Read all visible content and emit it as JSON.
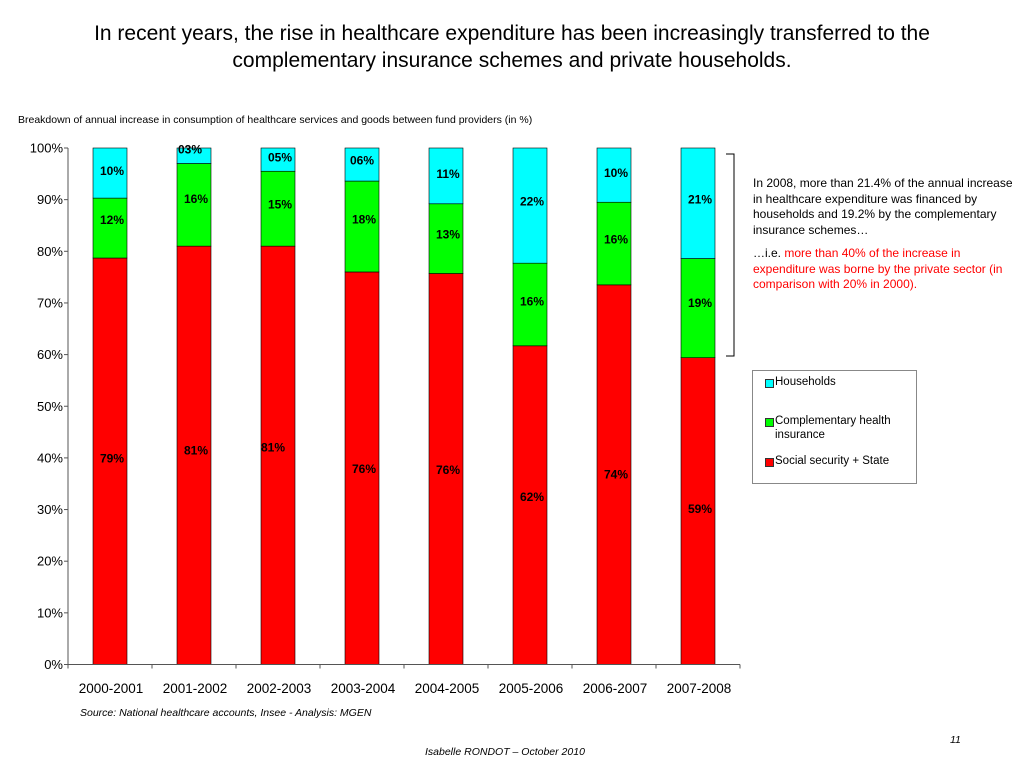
{
  "slide": {
    "title": "In recent years, the rise in healthcare expenditure has been increasingly transferred to the complementary insurance schemes and private households.",
    "subtitle": "Breakdown of annual increase in consumption of healthcare services and goods between fund providers (in %)",
    "source": "Source: National healthcare accounts, Insee   -   Analysis:  MGEN",
    "page_number": "11",
    "author": "Isabelle RONDOT – October 2010"
  },
  "annotation": {
    "paragraph1": "In 2008, more than 21.4% of the annual increase in healthcare expenditure was financed by households and 19.2% by the complementary insurance schemes…",
    "prefix": "…i.e. ",
    "highlight": "more than 40% of the increase in expenditure was borne by the private sector (in comparison with 20% in 2000).",
    "highlight_color": "#ff0000"
  },
  "legend": {
    "items": [
      {
        "label": "Households",
        "color": "#00ffff"
      },
      {
        "label": "Complementary health insurance",
        "color": "#00ff00"
      },
      {
        "label": "Social security + State",
        "color": "#ff0000"
      }
    ]
  },
  "chart_data": {
    "type": "bar",
    "stacked": true,
    "categories": [
      "2000-2001",
      "2001-2002",
      "2002-2003",
      "2003-2004",
      "2004-2005",
      "2005-2006",
      "2006-2007",
      "2007-2008"
    ],
    "ylim": [
      0,
      100
    ],
    "yticks": [
      "0%",
      "10%",
      "20%",
      "30%",
      "40%",
      "50%",
      "60%",
      "70%",
      "80%",
      "90%",
      "100%"
    ],
    "series": [
      {
        "name": "Social security + State",
        "color": "#ff0000",
        "values": [
          78.7,
          81,
          81,
          76,
          75.7,
          61.7,
          73.5,
          59.4
        ],
        "labels": [
          "79%",
          "81%",
          "81%",
          "76%",
          "76%",
          "62%",
          "74%",
          "59%"
        ]
      },
      {
        "name": "Complementary health insurance",
        "color": "#00ff00",
        "values": [
          11.6,
          16,
          14.5,
          17.6,
          13.5,
          16,
          16,
          19.2
        ],
        "labels": [
          "12%",
          "16%",
          "15%",
          "18%",
          "13%",
          "16%",
          "16%",
          "19%"
        ]
      },
      {
        "name": "Households",
        "color": "#00ffff",
        "values": [
          9.7,
          3,
          4.5,
          6.4,
          10.8,
          22.3,
          10.5,
          21.4
        ],
        "labels": [
          "10%",
          "03%",
          "05%",
          "06%",
          "11%",
          "22%",
          "10%",
          "21%"
        ]
      }
    ],
    "grid": false,
    "legend_position": "right"
  }
}
